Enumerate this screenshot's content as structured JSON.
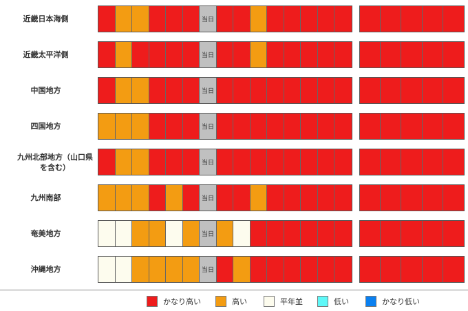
{
  "colors": {
    "very_high": "#ee1c1c",
    "high": "#f39c12",
    "normal": "#fdfcee",
    "low": "#5ef8f8",
    "very_low": "#0a80f0",
    "today": "#c0c0c0"
  },
  "today_label": "当日",
  "regions": [
    {
      "name": "近畿日本海側",
      "cells": [
        "very_high",
        "high",
        "high",
        "very_high",
        "very_high",
        "very_high",
        "today",
        "very_high",
        "very_high",
        "high",
        "very_high",
        "very_high",
        "very_high",
        "very_high",
        "very_high"
      ],
      "extended": [
        "very_high",
        "very_high",
        "very_high",
        "very_high",
        "very_high"
      ]
    },
    {
      "name": "近畿太平洋側",
      "cells": [
        "very_high",
        "high",
        "very_high",
        "very_high",
        "very_high",
        "very_high",
        "today",
        "very_high",
        "very_high",
        "high",
        "very_high",
        "very_high",
        "very_high",
        "very_high",
        "very_high"
      ],
      "extended": [
        "very_high",
        "very_high",
        "very_high",
        "very_high",
        "very_high"
      ]
    },
    {
      "name": "中国地方",
      "cells": [
        "very_high",
        "high",
        "high",
        "very_high",
        "very_high",
        "very_high",
        "today",
        "very_high",
        "very_high",
        "very_high",
        "very_high",
        "very_high",
        "very_high",
        "very_high",
        "very_high"
      ],
      "extended": [
        "very_high",
        "very_high",
        "very_high",
        "very_high",
        "very_high"
      ]
    },
    {
      "name": "四国地方",
      "cells": [
        "high",
        "high",
        "high",
        "very_high",
        "very_high",
        "very_high",
        "today",
        "very_high",
        "very_high",
        "very_high",
        "very_high",
        "very_high",
        "very_high",
        "very_high",
        "very_high"
      ],
      "extended": [
        "very_high",
        "very_high",
        "very_high",
        "very_high",
        "very_high"
      ]
    },
    {
      "name": "九州北部地方（山口県を含む）",
      "cells": [
        "very_high",
        "high",
        "high",
        "very_high",
        "very_high",
        "very_high",
        "today",
        "very_high",
        "very_high",
        "very_high",
        "very_high",
        "very_high",
        "very_high",
        "very_high",
        "very_high"
      ],
      "extended": [
        "very_high",
        "very_high",
        "very_high",
        "very_high",
        "very_high"
      ]
    },
    {
      "name": "九州南部",
      "cells": [
        "high",
        "high",
        "high",
        "very_high",
        "high",
        "very_high",
        "today",
        "very_high",
        "very_high",
        "high",
        "very_high",
        "very_high",
        "very_high",
        "very_high",
        "very_high"
      ],
      "extended": [
        "very_high",
        "very_high",
        "very_high",
        "very_high",
        "very_high"
      ]
    },
    {
      "name": "奄美地方",
      "cells": [
        "normal",
        "normal",
        "high",
        "high",
        "normal",
        "high",
        "today",
        "high",
        "normal",
        "very_high",
        "very_high",
        "very_high",
        "very_high",
        "very_high",
        "very_high"
      ],
      "extended": [
        "very_high",
        "very_high",
        "very_high",
        "very_high",
        "very_high"
      ]
    },
    {
      "name": "沖縄地方",
      "cells": [
        "normal",
        "normal",
        "high",
        "high",
        "high",
        "high",
        "today",
        "very_high",
        "high",
        "very_high",
        "very_high",
        "very_high",
        "very_high",
        "very_high",
        "very_high"
      ],
      "extended": [
        "very_high",
        "very_high",
        "very_high",
        "very_high",
        "very_high"
      ]
    }
  ],
  "legend": [
    {
      "key": "very_high",
      "label": "かなり高い"
    },
    {
      "key": "high",
      "label": "高い"
    },
    {
      "key": "normal",
      "label": "平年並"
    },
    {
      "key": "low",
      "label": "低い"
    },
    {
      "key": "very_low",
      "label": "かなり低い"
    }
  ]
}
